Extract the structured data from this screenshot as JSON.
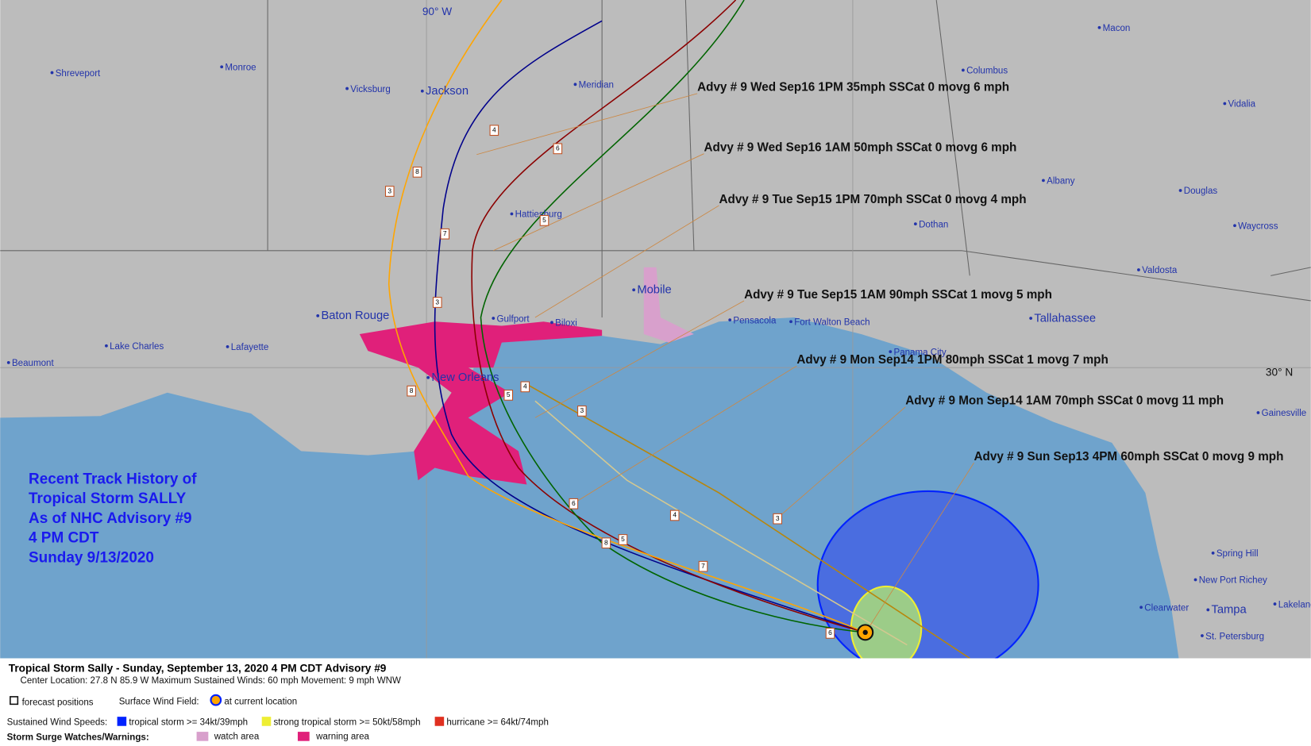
{
  "map": {
    "lon_label": "90° W",
    "lat_label": "30° N",
    "cities": [
      "Shreveport",
      "Monroe",
      "Vicksburg",
      "Jackson",
      "Meridian",
      "Macon",
      "Columbus",
      "Vidalia",
      "Albany",
      "Douglas",
      "Waycross",
      "Dothan",
      "Valdosta",
      "Hattiesburg",
      "Mobile",
      "Gulfport",
      "Biloxi",
      "Baton Rouge",
      "Pensacola",
      "Fort Walton Beach",
      "Tallahassee",
      "Panama City",
      "Lake Charles",
      "Lafayette",
      "Beaumont",
      "New Orleans",
      "Gainesville",
      "Spring Hill",
      "New Port Richey",
      "Clearwater",
      "Tampa",
      "St. Petersburg",
      "Lakeland"
    ],
    "forecast_numbers": [
      "3",
      "8",
      "4",
      "6",
      "5",
      "3",
      "8",
      "7",
      "5",
      "4",
      "3",
      "5",
      "6",
      "8",
      "7",
      "6",
      "4",
      "3"
    ]
  },
  "advisories": [
    "Advy # 9 Wed Sep16 1PM  35mph SSCat 0 movg 6 mph",
    "Advy # 9 Wed Sep16 1AM  50mph SSCat 0 movg 6 mph",
    "Advy # 9 Tue Sep15 1PM  70mph SSCat 0 movg 4 mph",
    "Advy # 9 Tue Sep15 1AM  90mph SSCat 1 movg 5 mph",
    "Advy # 9 Mon Sep14 1PM  80mph SSCat 1 movg 7 mph",
    "Advy # 9 Mon Sep14 1AM  70mph SSCat 0 movg 11 mph",
    "Advy # 9 Sun Sep13 4PM  60mph SSCat 0 movg 9 mph"
  ],
  "track_title": [
    "Recent Track History of",
    "Tropical Storm SALLY",
    "As of NHC Advisory #9",
    "4 PM CDT",
    "Sunday 9/13/2020"
  ],
  "legend": {
    "title": "Tropical Storm Sally  -  Sunday, September 13, 2020  4 PM CDT   Advisory #9",
    "center": "Center Location: 27.8 N  85.9 W   Maximum Sustained Winds: 60 mph  Movement: 9 mph WNW",
    "forecast": "forecast positions",
    "wind_field": "Surface Wind Field:",
    "current": "at current location",
    "speeds_label": "Sustained Wind Speeds:",
    "ts": "tropical storm >= 34kt/39mph",
    "sts": "strong tropical storm >= 50kt/58mph",
    "hu": "hurricane >= 64kt/74mph",
    "surge_label": "Storm Surge Watches/Warnings:",
    "watch": "watch area",
    "warning": "warning area"
  }
}
